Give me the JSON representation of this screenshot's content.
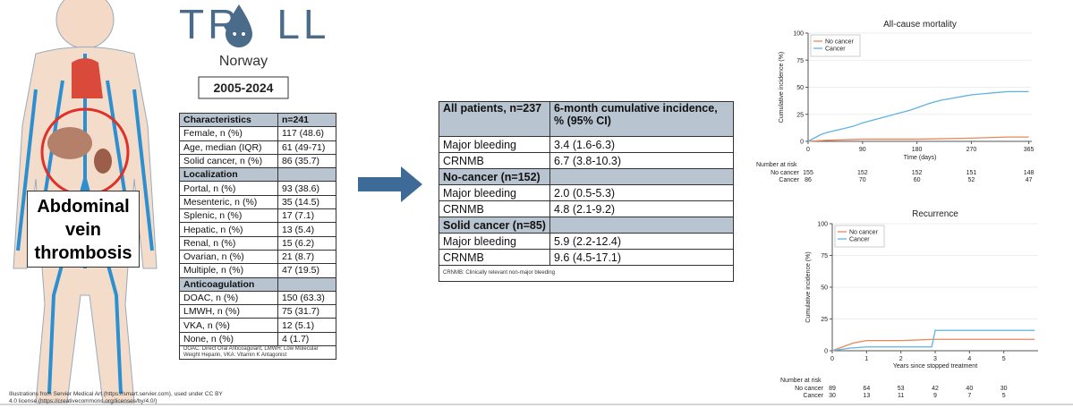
{
  "header": {
    "logo_left": "TR",
    "logo_right": "LL",
    "subtitle": "Norway",
    "period": "2005-2024"
  },
  "illustration_label": "Abdominal vein thrombosis",
  "credit": "Illustrations from Servier Medical Art (https://smart.servier.com), used under CC BY 4.0 license (https://creativecommons.org/licenses/by/4.0/)",
  "tables": [
    {
      "header": [
        "Characteristics",
        "n=241"
      ],
      "groups": [
        {
          "rows": [
            [
              "Female, n (%)",
              "117 (48.6)"
            ],
            [
              "Age, median (IQR)",
              "61 (49-71)"
            ],
            [
              "Solid cancer, n (%)",
              "86 (35.7)"
            ]
          ]
        },
        {
          "title": "Localization",
          "rows": [
            [
              "Portal, n (%)",
              "93 (38.6)"
            ],
            [
              "Mesenteric, n (%)",
              "35 (14.5)"
            ],
            [
              "Splenic, n (%)",
              "17 (7.1)"
            ],
            [
              "Hepatic, n (%)",
              "13 (5.4)"
            ],
            [
              "Renal, n (%)",
              "15 (6.2)"
            ],
            [
              "Ovarian, n (%)",
              "21 (8.7)"
            ],
            [
              "Multiple, n (%)",
              "47 (19.5)"
            ]
          ]
        },
        {
          "title": "Anticoagulation",
          "rows": [
            [
              "DOAC, n (%)",
              "150 (63.3)"
            ],
            [
              "LMWH, n (%)",
              "75 (31.7)"
            ],
            [
              "VKA, n (%)",
              "12 (5.1)"
            ],
            [
              "None, n (%)",
              "4 (1.7)"
            ]
          ]
        }
      ],
      "footnote": "DOAC: Direct Oral Anticoagulant, LMWH: Low Molecular Weight Heparin, VKA: Vitamin K Antagonist"
    },
    {
      "header": [
        "All patients, n=237",
        "6-month cumulative incidence, % (95% CI)"
      ],
      "groups": [
        {
          "rows": [
            [
              "Major bleeding",
              "3.4 (1.6-6.3)"
            ],
            [
              "CRNMB",
              "6.7 (3.8-10.3)"
            ]
          ]
        },
        {
          "title": "No-cancer (n=152)",
          "rows": [
            [
              "Major bleeding",
              "2.0 (0.5-5.3)"
            ],
            [
              "CRNMB",
              "4.8 (2.1-9.2)"
            ]
          ]
        },
        {
          "title": "Solid cancer (n=85)",
          "rows": [
            [
              "Major bleeding",
              "5.9 (2.2-12.4)"
            ],
            [
              "CRNMB",
              "9.6 (4.5-17.1)"
            ]
          ]
        }
      ],
      "footnote": "CRNMB: Clinically relevant non-major bleeding"
    }
  ],
  "chart_data": [
    {
      "type": "line",
      "title": "All-cause mortality",
      "x_label": "Time (days)",
      "y_label": "Cumulative incidence (%)",
      "xlim": [
        0,
        370
      ],
      "ylim": [
        0,
        100
      ],
      "xticks": [
        0,
        90,
        180,
        270,
        365
      ],
      "yticks": [
        0,
        25,
        50,
        75,
        100
      ],
      "grid": true,
      "legend": "top-left",
      "series": [
        {
          "name": "No cancer",
          "color": "#e8875a",
          "x": [
            0,
            30,
            90,
            180,
            270,
            330,
            365
          ],
          "values": [
            0,
            1,
            2,
            2,
            3,
            4,
            4
          ]
        },
        {
          "name": "Cancer",
          "color": "#5fb3e0",
          "x": [
            0,
            10,
            20,
            30,
            45,
            60,
            75,
            90,
            110,
            130,
            150,
            170,
            180,
            200,
            220,
            240,
            260,
            270,
            290,
            310,
            330,
            350,
            365
          ],
          "values": [
            0,
            3,
            6,
            8,
            10,
            12,
            14,
            17,
            20,
            23,
            26,
            29,
            31,
            35,
            38,
            40,
            42,
            43,
            44,
            45,
            46,
            46,
            46
          ]
        }
      ],
      "risk_table": {
        "title": "Number at risk",
        "rows": [
          {
            "name": "No cancer",
            "values": [
              155,
              152,
              152,
              151,
              148
            ]
          },
          {
            "name": "Cancer",
            "values": [
              86,
              70,
              60,
              52,
              47
            ]
          }
        ]
      }
    },
    {
      "type": "line",
      "title": "Recurrence",
      "x_label": "Years since stopped treatment",
      "y_label": "Cumulative incidence (%)",
      "xlim": [
        0,
        6
      ],
      "ylim": [
        0,
        100
      ],
      "xticks": [
        0,
        1,
        2,
        3,
        4,
        5
      ],
      "yticks": [
        0,
        25,
        50,
        75,
        100
      ],
      "grid": true,
      "legend": "top-left",
      "series": [
        {
          "name": "No cancer",
          "color": "#e8875a",
          "x": [
            0,
            0.3,
            0.6,
            1,
            2,
            3,
            3.5,
            5.9
          ],
          "values": [
            0,
            3,
            6,
            8,
            8,
            9,
            9,
            9
          ]
        },
        {
          "name": "Cancer",
          "color": "#5fb3e0",
          "x": [
            0,
            0.5,
            1,
            2,
            2.9,
            3,
            5.9
          ],
          "values": [
            0,
            2,
            3,
            3,
            3,
            16,
            16
          ]
        }
      ],
      "risk_table": {
        "title": "Number at risk",
        "rows": [
          {
            "name": "No cancer",
            "values": [
              89,
              64,
              53,
              42,
              40,
              30
            ]
          },
          {
            "name": "Cancer",
            "values": [
              30,
              13,
              11,
              9,
              7,
              5
            ]
          }
        ]
      }
    }
  ]
}
